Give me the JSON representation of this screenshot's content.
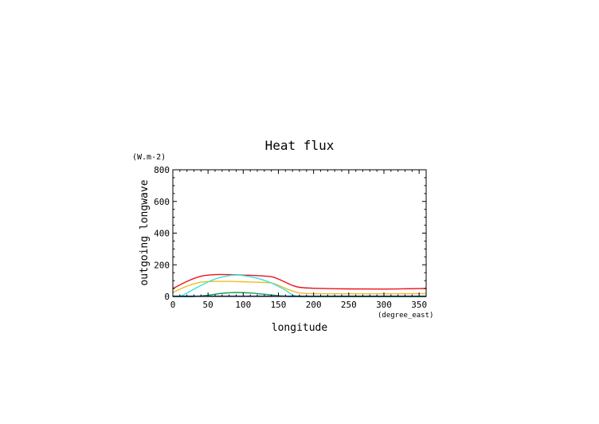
{
  "chart_data": {
    "type": "line",
    "title": "Heat flux",
    "xlabel": "longitude",
    "xunit": "(degree_east)",
    "ylabel": "outgoing longwave",
    "yunit": "(W.m-2)",
    "xlim": [
      0,
      360
    ],
    "ylim": [
      0,
      800
    ],
    "xticks": [
      0,
      50,
      100,
      150,
      200,
      250,
      300,
      350
    ],
    "yticks": [
      0,
      200,
      400,
      600,
      800
    ],
    "grid": false,
    "series": [
      {
        "color": "#e8141e",
        "x": [
          0,
          20,
          40,
          60,
          80,
          100,
          120,
          140,
          150,
          160,
          170,
          180,
          200,
          250,
          300,
          350,
          360
        ],
        "y": [
          50,
          95,
          128,
          138,
          138,
          135,
          132,
          125,
          110,
          90,
          70,
          58,
          52,
          48,
          47,
          50,
          52
        ]
      },
      {
        "color": "#f5b81e",
        "x": [
          0,
          20,
          40,
          60,
          80,
          100,
          120,
          140,
          150,
          160,
          170,
          180,
          200,
          250,
          300,
          350,
          360
        ],
        "y": [
          25,
          65,
          90,
          95,
          95,
          93,
          90,
          85,
          70,
          52,
          35,
          22,
          18,
          17,
          17,
          18,
          18
        ]
      },
      {
        "color": "#32e6dc",
        "x": [
          0,
          10,
          20,
          40,
          60,
          80,
          90,
          100,
          120,
          140,
          160,
          170,
          180,
          200,
          250,
          300,
          360
        ],
        "y": [
          0,
          0,
          22,
          70,
          110,
          132,
          135,
          132,
          115,
          85,
          40,
          10,
          0,
          0,
          0,
          0,
          0
        ]
      },
      {
        "color": "#16a050",
        "x": [
          0,
          30,
          50,
          70,
          90,
          110,
          130,
          150,
          165,
          180,
          250,
          360
        ],
        "y": [
          0,
          0,
          8,
          20,
          25,
          22,
          14,
          5,
          0,
          0,
          0,
          0
        ]
      },
      {
        "color": "#1e46b4",
        "x": [
          0,
          360
        ],
        "y": [
          2,
          2
        ]
      }
    ]
  }
}
